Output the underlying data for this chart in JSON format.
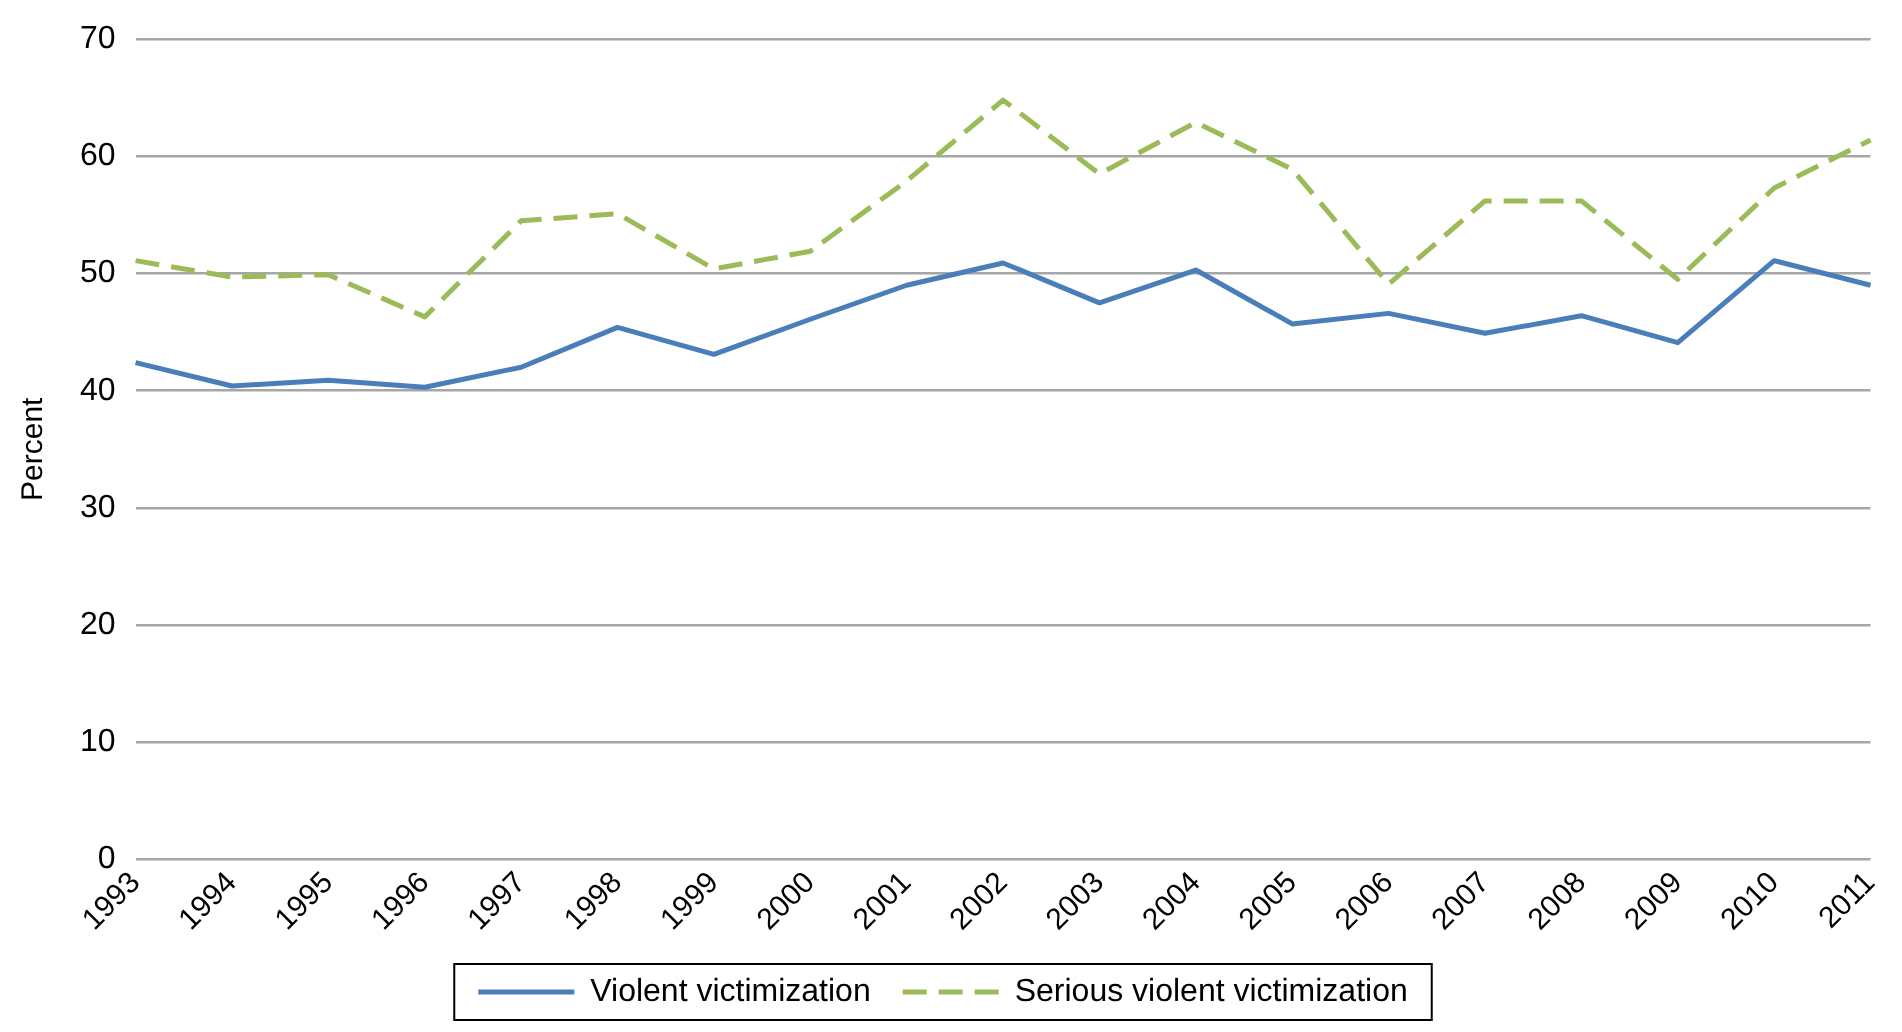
{
  "chart_data": {
    "type": "line",
    "ylabel": "Percent",
    "categories": [
      "1993",
      "1994",
      "1995",
      "1996",
      "1997",
      "1998",
      "1999",
      "2000",
      "2001",
      "2002",
      "2003",
      "2004",
      "2005",
      "2006",
      "2007",
      "2008",
      "2009",
      "2010",
      "2011"
    ],
    "series": [
      {
        "name": "Violent victimization",
        "color": "#4a7ebb",
        "line_style": "solid",
        "values": [
          42.4,
          40.4,
          40.9,
          40.3,
          42.0,
          45.4,
          43.1,
          46.1,
          49.0,
          50.9,
          47.5,
          50.3,
          45.7,
          46.6,
          44.9,
          46.4,
          44.1,
          51.1,
          49.0
        ]
      },
      {
        "name": "Serious violent victimization",
        "color": "#9bbb59",
        "line_style": "dashed",
        "values": [
          51.1,
          49.7,
          49.9,
          46.3,
          54.5,
          55.1,
          50.4,
          51.9,
          57.9,
          64.8,
          58.5,
          62.9,
          58.9,
          49.1,
          56.2,
          56.2,
          49.5,
          57.3,
          61.4
        ]
      }
    ],
    "ylim": [
      0,
      70
    ],
    "yticks": [
      0,
      10,
      20,
      30,
      40,
      50,
      60,
      70
    ],
    "grid": "y",
    "legend": "bottom",
    "marker": "none"
  }
}
